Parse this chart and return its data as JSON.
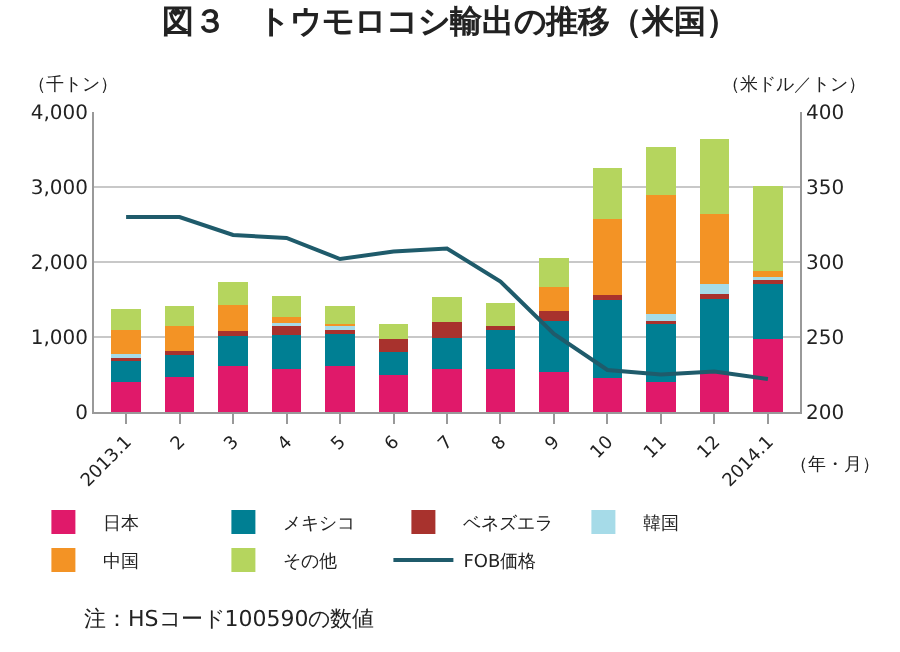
{
  "chart_data": {
    "type": "bar",
    "title": "図３　トウモロコシ輸出の推移（米国）",
    "xlabel": "（年・月）",
    "ylabel": "（千トン）",
    "y2label": "（米ドル／トン）",
    "categories": [
      "2013.1",
      "2",
      "3",
      "4",
      "5",
      "6",
      "7",
      "8",
      "9",
      "10",
      "11",
      "12",
      "2014.1"
    ],
    "stacked": true,
    "series": [
      {
        "name": "日本",
        "color": "#e0196a",
        "values": [
          400,
          470,
          610,
          570,
          610,
          490,
          570,
          570,
          540,
          450,
          400,
          520,
          970
        ]
      },
      {
        "name": "メキシコ",
        "color": "#007f93",
        "values": [
          280,
          290,
          400,
          460,
          440,
          310,
          420,
          540,
          670,
          1040,
          790,
          990,
          750
        ]
      },
      {
        "name": "ベネズエラ",
        "color": "#a8322d",
        "values": [
          60,
          60,
          70,
          140,
          50,
          170,
          210,
          40,
          140,
          70,
          20,
          60,
          40
        ]
      },
      {
        "name": "韓国",
        "color": "#a6dbe8",
        "values": [
          40,
          0,
          0,
          20,
          60,
          0,
          0,
          0,
          0,
          0,
          100,
          140,
          40
        ]
      },
      {
        "name": "中国",
        "color": "#f39325",
        "values": [
          320,
          330,
          350,
          80,
          20,
          0,
          0,
          0,
          320,
          1010,
          1590,
          930,
          80
        ]
      },
      {
        "name": "その他",
        "color": "#b5d55e",
        "values": [
          270,
          260,
          310,
          280,
          240,
          200,
          330,
          300,
          380,
          690,
          640,
          1000,
          1140
        ]
      },
      {
        "name": "FOB価格",
        "type": "line",
        "axis": "y2",
        "color": "#1f5b6b",
        "values": [
          330,
          330,
          318,
          316,
          302,
          307,
          309,
          287,
          252,
          228,
          225,
          227,
          222
        ]
      }
    ],
    "ylim": [
      0,
      4000
    ],
    "yticks": [
      {
        "value": 0,
        "label": "0"
      },
      {
        "value": 1000,
        "label": "1,000"
      },
      {
        "value": 2000,
        "label": "2,000"
      },
      {
        "value": 3000,
        "label": "3,000"
      },
      {
        "value": 4000,
        "label": "4,000"
      }
    ],
    "y2lim": [
      200,
      400
    ],
    "y2ticks": [
      200,
      250,
      300,
      350,
      400
    ],
    "grid": "y",
    "legend": "bottom",
    "marker": "none",
    "line_style": "solid",
    "annotations": [
      "注：HSコード100590の数値"
    ]
  }
}
